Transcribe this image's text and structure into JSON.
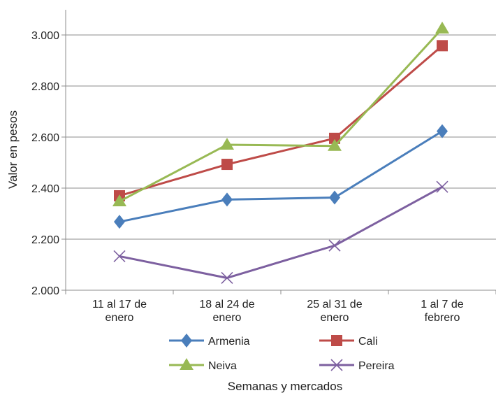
{
  "chart_data": {
    "type": "line",
    "title": "",
    "ylabel": "Valor en pesos",
    "xlabel": "Semanas y mercados",
    "ylim": [
      2000,
      3000
    ],
    "yticks": [
      2000,
      2200,
      2400,
      2600,
      2800,
      3000
    ],
    "ytick_labels": [
      "2.000",
      "2.200",
      "2.400",
      "2.600",
      "2.800",
      "3.000"
    ],
    "grid": "horizontal",
    "legend_position": "bottom",
    "categories": [
      [
        "11 al 17 de",
        "enero"
      ],
      [
        "18 al 24 de",
        "enero"
      ],
      [
        "25 al 31 de",
        "enero"
      ],
      [
        "1 al 7 de",
        "febrero"
      ]
    ],
    "series": [
      {
        "name": "Armenia",
        "color": "#4a7ebb",
        "marker": "diamond",
        "values": [
          2268,
          2355,
          2363,
          2623
        ]
      },
      {
        "name": "Cali",
        "color": "#be4b48",
        "marker": "square",
        "values": [
          2370,
          2493,
          2595,
          2958
        ]
      },
      {
        "name": "Neiva",
        "color": "#98b954",
        "marker": "triangle",
        "values": [
          2348,
          2570,
          2565,
          3025
        ]
      },
      {
        "name": "Pereira",
        "color": "#7d60a0",
        "marker": "x",
        "values": [
          2133,
          2048,
          2175,
          2405
        ]
      }
    ]
  }
}
